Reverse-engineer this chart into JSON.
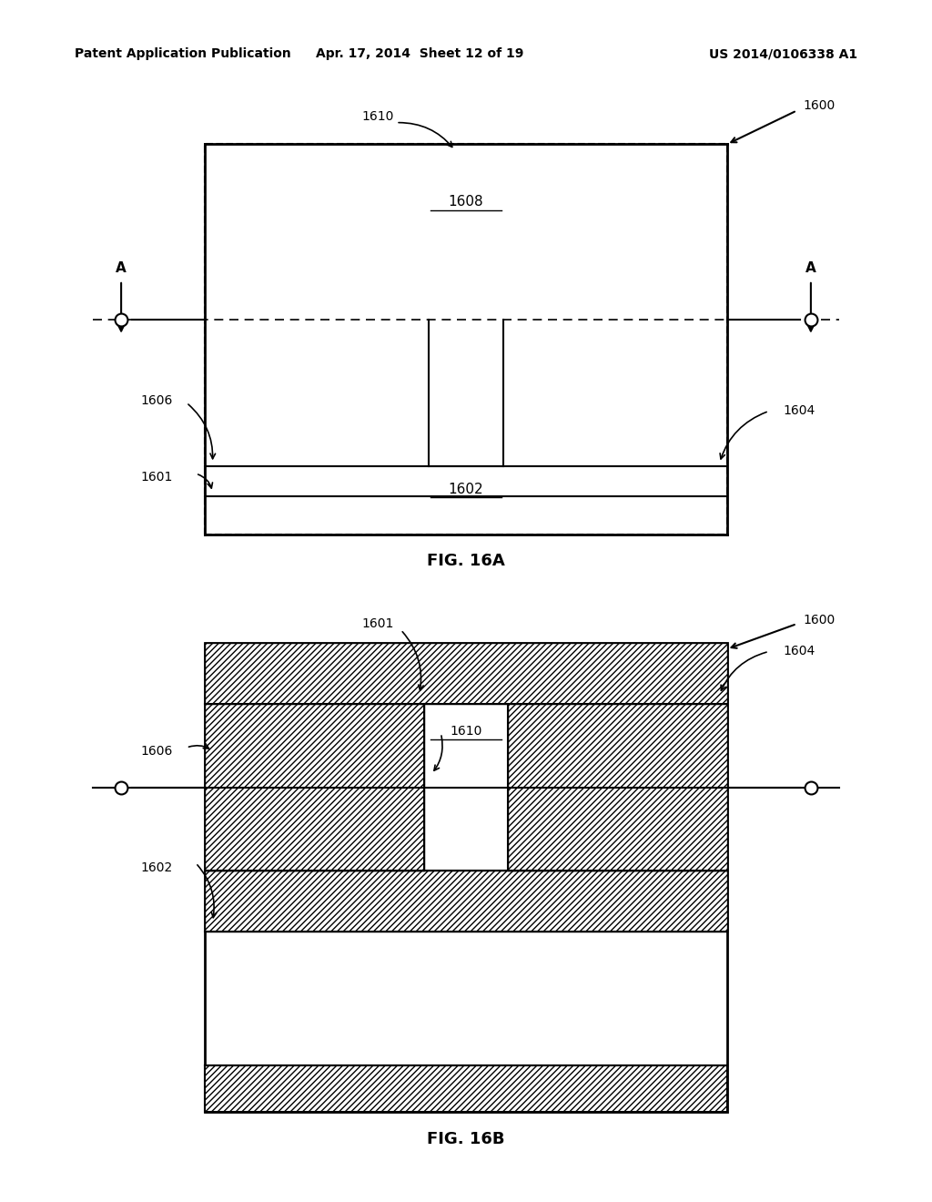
{
  "bg_color": "#ffffff",
  "text_color": "#000000",
  "header_left": "Patent Application Publication",
  "header_mid": "Apr. 17, 2014  Sheet 12 of 19",
  "header_right": "US 2014/0106338 A1",
  "fig_label_a": "FIG. 16A",
  "fig_label_b": "FIG. 16B"
}
